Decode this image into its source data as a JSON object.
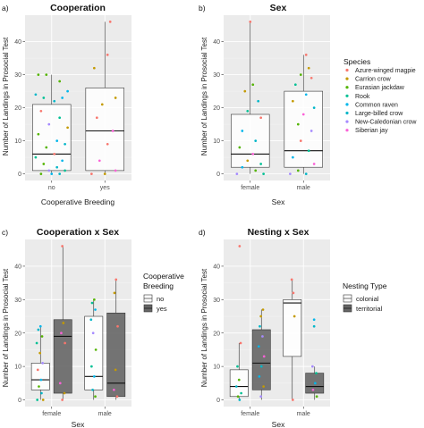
{
  "panels": [
    {
      "tag": "a)",
      "title": "Cooperation",
      "xlabel": "Cooperative Breeding",
      "ylabel": "Number of Landings in Prosocial Test"
    },
    {
      "tag": "b)",
      "title": "Sex",
      "xlabel": "Sex",
      "ylabel": "Number of Landings in Prosocial Test"
    },
    {
      "tag": "c)",
      "title": "Cooperation x Sex",
      "xlabel": "Sex",
      "ylabel": "Number of Landings in Prosocial Test"
    },
    {
      "tag": "d)",
      "title": "Nesting x Sex",
      "xlabel": "Sex",
      "ylabel": "Number of Landings in Prosocial Test"
    }
  ],
  "legends": {
    "species": {
      "title": "Species",
      "items": [
        {
          "label": "Azure-winged magpie",
          "color": "#F8766D"
        },
        {
          "label": "Carrion crow",
          "color": "#C49A00"
        },
        {
          "label": "Eurasian jackdaw",
          "color": "#53B400"
        },
        {
          "label": "Rook",
          "color": "#00C094"
        },
        {
          "label": "Common raven",
          "color": "#00B6EB"
        },
        {
          "label": "Large-billed crow",
          "color": "#00B6C8"
        },
        {
          "label": "New-Caledonian crow",
          "color": "#A58AFF"
        },
        {
          "label": "Siberian jay",
          "color": "#FB61D7"
        }
      ]
    },
    "coop": {
      "title_line1": "Cooperative",
      "title_line2": "Breeding",
      "items": [
        {
          "label": "no",
          "fill": "#ffffff"
        },
        {
          "label": "yes",
          "fill": "#666666"
        }
      ]
    },
    "nesting": {
      "title": "Nesting Type",
      "items": [
        {
          "label": "colonial",
          "fill": "#ffffff"
        },
        {
          "label": "territorial",
          "fill": "#666666"
        }
      ]
    }
  },
  "chart_data": [
    {
      "type": "box",
      "title": "Cooperation",
      "xlabel": "Cooperative Breeding",
      "ylabel": "Number of Landings in Prosocial Test",
      "ylim": [
        -2,
        48
      ],
      "yticks": [
        0,
        10,
        20,
        30,
        40
      ],
      "categories": [
        "no",
        "yes"
      ],
      "boxes": [
        {
          "category": "no",
          "whisker_low": 0,
          "q1": 1,
          "median": 6,
          "q3": 21,
          "whisker_high": 30
        },
        {
          "category": "yes",
          "whisker_low": 0,
          "q1": 1,
          "median": 13,
          "q3": 26,
          "whisker_high": 46
        }
      ],
      "points": [
        {
          "c": 0,
          "dx": -0.25,
          "y": 30,
          "s": 2
        },
        {
          "c": 0,
          "dx": -0.1,
          "y": 30,
          "s": 2
        },
        {
          "c": 0,
          "dx": 0.15,
          "y": 28,
          "s": 2
        },
        {
          "c": 0,
          "dx": 0.3,
          "y": 25,
          "s": 4
        },
        {
          "c": 0,
          "dx": -0.3,
          "y": 24,
          "s": 5
        },
        {
          "c": 0,
          "dx": -0.15,
          "y": 23,
          "s": 3
        },
        {
          "c": 0,
          "dx": 0.2,
          "y": 23,
          "s": 4
        },
        {
          "c": 0,
          "dx": 0.05,
          "y": 22,
          "s": 5
        },
        {
          "c": 0,
          "dx": -0.2,
          "y": 19,
          "s": 0
        },
        {
          "c": 0,
          "dx": 0.15,
          "y": 17,
          "s": 3
        },
        {
          "c": 0,
          "dx": -0.05,
          "y": 15,
          "s": 6
        },
        {
          "c": 0,
          "dx": 0.3,
          "y": 14,
          "s": 1
        },
        {
          "c": 0,
          "dx": -0.25,
          "y": 12,
          "s": 2
        },
        {
          "c": 0,
          "dx": 0.1,
          "y": 10,
          "s": 4
        },
        {
          "c": 0,
          "dx": 0.25,
          "y": 9,
          "s": 5
        },
        {
          "c": 0,
          "dx": -0.1,
          "y": 8,
          "s": 2
        },
        {
          "c": 0,
          "dx": 0.05,
          "y": 6,
          "s": 0
        },
        {
          "c": 0,
          "dx": -0.3,
          "y": 5,
          "s": 3
        },
        {
          "c": 0,
          "dx": 0.2,
          "y": 4,
          "s": 4
        },
        {
          "c": 0,
          "dx": -0.15,
          "y": 3,
          "s": 2
        },
        {
          "c": 0,
          "dx": 0.1,
          "y": 2,
          "s": 5
        },
        {
          "c": 0,
          "dx": -0.05,
          "y": 1,
          "s": 6
        },
        {
          "c": 0,
          "dx": 0.25,
          "y": 1,
          "s": 3
        },
        {
          "c": 0,
          "dx": -0.2,
          "y": 0,
          "s": 2
        },
        {
          "c": 0,
          "dx": 0.0,
          "y": 0,
          "s": 4
        },
        {
          "c": 0,
          "dx": 0.15,
          "y": 0,
          "s": 5
        },
        {
          "c": 1,
          "dx": 0.1,
          "y": 46,
          "s": 0
        },
        {
          "c": 1,
          "dx": 0.05,
          "y": 36,
          "s": 0
        },
        {
          "c": 1,
          "dx": -0.2,
          "y": 32,
          "s": 1
        },
        {
          "c": 1,
          "dx": 0.2,
          "y": 23,
          "s": 1
        },
        {
          "c": 1,
          "dx": -0.05,
          "y": 21,
          "s": 1
        },
        {
          "c": 1,
          "dx": -0.15,
          "y": 17,
          "s": 0
        },
        {
          "c": 1,
          "dx": 0.15,
          "y": 13,
          "s": 7
        },
        {
          "c": 1,
          "dx": 0.05,
          "y": 9,
          "s": 0
        },
        {
          "c": 1,
          "dx": -0.1,
          "y": 4,
          "s": 7
        },
        {
          "c": 1,
          "dx": 0.2,
          "y": 1,
          "s": 7
        },
        {
          "c": 1,
          "dx": -0.25,
          "y": 0,
          "s": 0
        },
        {
          "c": 1,
          "dx": 0.0,
          "y": 0,
          "s": 1
        }
      ]
    },
    {
      "type": "box",
      "title": "Sex",
      "xlabel": "Sex",
      "ylabel": "Number of Landings in Prosocial Test",
      "ylim": [
        -2,
        48
      ],
      "yticks": [
        0,
        10,
        20,
        30,
        40
      ],
      "categories": [
        "female",
        "male"
      ],
      "boxes": [
        {
          "category": "female",
          "whisker_low": 0,
          "q1": 2,
          "median": 6,
          "q3": 18,
          "whisker_high": 46
        },
        {
          "category": "male",
          "whisker_low": 0,
          "q1": 2,
          "median": 7,
          "q3": 25,
          "whisker_high": 36
        }
      ],
      "points": [
        {
          "c": 0,
          "dx": 0.0,
          "y": 46,
          "s": 0
        },
        {
          "c": 0,
          "dx": 0.05,
          "y": 27,
          "s": 2
        },
        {
          "c": 0,
          "dx": -0.1,
          "y": 25,
          "s": 1
        },
        {
          "c": 0,
          "dx": 0.15,
          "y": 22,
          "s": 5
        },
        {
          "c": 0,
          "dx": -0.05,
          "y": 19,
          "s": 3
        },
        {
          "c": 0,
          "dx": 0.2,
          "y": 17,
          "s": 0
        },
        {
          "c": 0,
          "dx": -0.15,
          "y": 13,
          "s": 4
        },
        {
          "c": 0,
          "dx": 0.1,
          "y": 10,
          "s": 5
        },
        {
          "c": 0,
          "dx": -0.2,
          "y": 8,
          "s": 2
        },
        {
          "c": 0,
          "dx": 0.05,
          "y": 6,
          "s": 7
        },
        {
          "c": 0,
          "dx": -0.05,
          "y": 4,
          "s": 1
        },
        {
          "c": 0,
          "dx": 0.2,
          "y": 3,
          "s": 3
        },
        {
          "c": 0,
          "dx": -0.15,
          "y": 2,
          "s": 4
        },
        {
          "c": 0,
          "dx": 0.1,
          "y": 1,
          "s": 2
        },
        {
          "c": 0,
          "dx": -0.25,
          "y": 0,
          "s": 6
        },
        {
          "c": 0,
          "dx": 0.25,
          "y": 0,
          "s": 3
        },
        {
          "c": 1,
          "dx": 0.05,
          "y": 36,
          "s": 0
        },
        {
          "c": 1,
          "dx": 0.1,
          "y": 32,
          "s": 1
        },
        {
          "c": 1,
          "dx": -0.05,
          "y": 30,
          "s": 2
        },
        {
          "c": 1,
          "dx": 0.15,
          "y": 29,
          "s": 0
        },
        {
          "c": 1,
          "dx": -0.15,
          "y": 27,
          "s": 3
        },
        {
          "c": 1,
          "dx": 0.05,
          "y": 24,
          "s": 4
        },
        {
          "c": 1,
          "dx": -0.2,
          "y": 22,
          "s": 1
        },
        {
          "c": 1,
          "dx": 0.2,
          "y": 20,
          "s": 5
        },
        {
          "c": 1,
          "dx": 0.0,
          "y": 18,
          "s": 7
        },
        {
          "c": 1,
          "dx": -0.1,
          "y": 15,
          "s": 2
        },
        {
          "c": 1,
          "dx": 0.15,
          "y": 13,
          "s": 6
        },
        {
          "c": 1,
          "dx": -0.05,
          "y": 10,
          "s": 0
        },
        {
          "c": 1,
          "dx": 0.1,
          "y": 7,
          "s": 3
        },
        {
          "c": 1,
          "dx": -0.2,
          "y": 5,
          "s": 4
        },
        {
          "c": 1,
          "dx": 0.2,
          "y": 3,
          "s": 7
        },
        {
          "c": 1,
          "dx": -0.1,
          "y": 1,
          "s": 2
        },
        {
          "c": 1,
          "dx": 0.05,
          "y": 0,
          "s": 5
        },
        {
          "c": 1,
          "dx": -0.25,
          "y": 0,
          "s": 6
        }
      ]
    },
    {
      "type": "box",
      "title": "Cooperation x Sex",
      "xlabel": "Sex",
      "ylabel": "Number of Landings in Prosocial Test",
      "ylim": [
        -2,
        48
      ],
      "yticks": [
        0,
        10,
        20,
        30,
        40
      ],
      "categories": [
        "female",
        "male"
      ],
      "dodge": 0.21,
      "groups": [
        "no",
        "yes"
      ],
      "boxes": [
        {
          "category": "female",
          "group": 0,
          "whisker_low": 0,
          "q1": 3,
          "median": 6,
          "q3": 11,
          "whisker_high": 22
        },
        {
          "category": "female",
          "group": 1,
          "whisker_low": 0,
          "q1": 2,
          "median": 19,
          "q3": 24,
          "whisker_high": 46
        },
        {
          "category": "male",
          "group": 0,
          "whisker_low": 0,
          "q1": 3,
          "median": 7,
          "q3": 25,
          "whisker_high": 30
        },
        {
          "category": "male",
          "group": 1,
          "whisker_low": 0,
          "q1": 1,
          "median": 5,
          "q3": 26,
          "whisker_high": 36
        }
      ],
      "points": [
        {
          "c": 0,
          "dx": -0.21,
          "y": 22,
          "s": 4
        },
        {
          "c": 0,
          "dx": -0.25,
          "y": 21,
          "s": 5
        },
        {
          "c": 0,
          "dx": -0.18,
          "y": 19,
          "s": 2
        },
        {
          "c": 0,
          "dx": -0.28,
          "y": 17,
          "s": 3
        },
        {
          "c": 0,
          "dx": -0.22,
          "y": 14,
          "s": 1
        },
        {
          "c": 0,
          "dx": -0.17,
          "y": 11,
          "s": 6
        },
        {
          "c": 0,
          "dx": -0.26,
          "y": 9,
          "s": 0
        },
        {
          "c": 0,
          "dx": -0.2,
          "y": 6,
          "s": 4
        },
        {
          "c": 0,
          "dx": -0.24,
          "y": 4,
          "s": 2
        },
        {
          "c": 0,
          "dx": -0.19,
          "y": 2,
          "s": 5
        },
        {
          "c": 0,
          "dx": -0.27,
          "y": 0,
          "s": 3
        },
        {
          "c": 0,
          "dx": -0.16,
          "y": 0,
          "s": 1
        },
        {
          "c": 0,
          "dx": 0.2,
          "y": 46,
          "s": 0
        },
        {
          "c": 0,
          "dx": 0.22,
          "y": 23,
          "s": 1
        },
        {
          "c": 0,
          "dx": 0.18,
          "y": 20,
          "s": 7
        },
        {
          "c": 0,
          "dx": 0.25,
          "y": 17,
          "s": 0
        },
        {
          "c": 0,
          "dx": 0.16,
          "y": 5,
          "s": 7
        },
        {
          "c": 0,
          "dx": 0.24,
          "y": 2,
          "s": 1
        },
        {
          "c": 0,
          "dx": 0.2,
          "y": 0,
          "s": 0
        },
        {
          "c": 1,
          "dx": -0.2,
          "y": 30,
          "s": 2
        },
        {
          "c": 1,
          "dx": -0.24,
          "y": 29,
          "s": 3
        },
        {
          "c": 1,
          "dx": -0.18,
          "y": 27,
          "s": 4
        },
        {
          "c": 1,
          "dx": -0.26,
          "y": 24,
          "s": 5
        },
        {
          "c": 1,
          "dx": -0.22,
          "y": 20,
          "s": 6
        },
        {
          "c": 1,
          "dx": -0.17,
          "y": 15,
          "s": 2
        },
        {
          "c": 1,
          "dx": -0.25,
          "y": 10,
          "s": 3
        },
        {
          "c": 1,
          "dx": -0.2,
          "y": 7,
          "s": 4
        },
        {
          "c": 1,
          "dx": -0.23,
          "y": 3,
          "s": 5
        },
        {
          "c": 1,
          "dx": -0.18,
          "y": 1,
          "s": 2
        },
        {
          "c": 1,
          "dx": 0.21,
          "y": 36,
          "s": 0
        },
        {
          "c": 1,
          "dx": 0.18,
          "y": 32,
          "s": 1
        },
        {
          "c": 1,
          "dx": 0.24,
          "y": 22,
          "s": 0
        },
        {
          "c": 1,
          "dx": 0.2,
          "y": 9,
          "s": 1
        },
        {
          "c": 1,
          "dx": 0.17,
          "y": 3,
          "s": 7
        },
        {
          "c": 1,
          "dx": 0.23,
          "y": 1,
          "s": 0
        }
      ]
    },
    {
      "type": "box",
      "title": "Nesting x Sex",
      "xlabel": "Sex",
      "ylabel": "Number of Landings in Prosocial Test",
      "ylim": [
        -2,
        48
      ],
      "yticks": [
        0,
        10,
        20,
        30,
        40
      ],
      "categories": [
        "female",
        "male"
      ],
      "dodge": 0.21,
      "groups": [
        "colonial",
        "territorial"
      ],
      "boxes": [
        {
          "category": "female",
          "group": 0,
          "whisker_low": 0,
          "q1": 1,
          "median": 4,
          "q3": 9,
          "whisker_high": 17
        },
        {
          "category": "female",
          "group": 1,
          "whisker_low": 0,
          "q1": 3,
          "median": 11,
          "q3": 21,
          "whisker_high": 27
        },
        {
          "category": "male",
          "group": 0,
          "whisker_low": 0,
          "q1": 13,
          "median": 29,
          "q3": 30,
          "whisker_high": 36
        },
        {
          "category": "male",
          "group": 1,
          "whisker_low": 0,
          "q1": 2,
          "median": 4,
          "q3": 8,
          "whisker_high": 10
        }
      ],
      "points": [
        {
          "c": 0,
          "dx": -0.2,
          "y": 46,
          "s": 0
        },
        {
          "c": 0,
          "dx": -0.18,
          "y": 17,
          "s": 0
        },
        {
          "c": 0,
          "dx": -0.24,
          "y": 10,
          "s": 3
        },
        {
          "c": 0,
          "dx": -0.21,
          "y": 6,
          "s": 2
        },
        {
          "c": 0,
          "dx": -0.26,
          "y": 4,
          "s": 5
        },
        {
          "c": 0,
          "dx": -0.17,
          "y": 2,
          "s": 3
        },
        {
          "c": 0,
          "dx": -0.23,
          "y": 1,
          "s": 2
        },
        {
          "c": 0,
          "dx": -0.2,
          "y": 0,
          "s": 5
        },
        {
          "c": 0,
          "dx": 0.24,
          "y": 27,
          "s": 1
        },
        {
          "c": 0,
          "dx": 0.2,
          "y": 25,
          "s": 1
        },
        {
          "c": 0,
          "dx": 0.18,
          "y": 22,
          "s": 5
        },
        {
          "c": 0,
          "dx": 0.23,
          "y": 19,
          "s": 6
        },
        {
          "c": 0,
          "dx": 0.16,
          "y": 16,
          "s": 4
        },
        {
          "c": 0,
          "dx": 0.26,
          "y": 13,
          "s": 7
        },
        {
          "c": 0,
          "dx": 0.21,
          "y": 10,
          "s": 5
        },
        {
          "c": 0,
          "dx": 0.17,
          "y": 7,
          "s": 4
        },
        {
          "c": 0,
          "dx": 0.25,
          "y": 4,
          "s": 1
        },
        {
          "c": 0,
          "dx": 0.2,
          "y": 1,
          "s": 6
        },
        {
          "c": 1,
          "dx": -0.22,
          "y": 36,
          "s": 0
        },
        {
          "c": 1,
          "dx": -0.19,
          "y": 32,
          "s": 0
        },
        {
          "c": 1,
          "dx": -0.17,
          "y": 25,
          "s": 1
        },
        {
          "c": 1,
          "dx": -0.2,
          "y": 0,
          "s": 0
        },
        {
          "c": 1,
          "dx": 0.2,
          "y": 24,
          "s": 4
        },
        {
          "c": 1,
          "dx": 0.2,
          "y": 22,
          "s": 5
        },
        {
          "c": 1,
          "dx": 0.17,
          "y": 10,
          "s": 6
        },
        {
          "c": 1,
          "dx": 0.24,
          "y": 8,
          "s": 3
        },
        {
          "c": 1,
          "dx": 0.22,
          "y": 5,
          "s": 4
        },
        {
          "c": 1,
          "dx": 0.18,
          "y": 3,
          "s": 7
        },
        {
          "c": 1,
          "dx": 0.25,
          "y": 1,
          "s": 2
        }
      ]
    }
  ]
}
